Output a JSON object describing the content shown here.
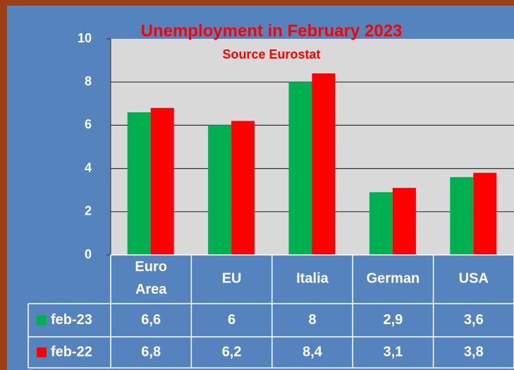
{
  "chart_data": {
    "type": "bar",
    "title": "Unemployment in February 2023",
    "subtitle": "Source Eurostat",
    "categories": [
      "Euro Area",
      "EU",
      "Italia",
      "German",
      "USA"
    ],
    "series": [
      {
        "name": "feb-23",
        "color": "#00b050",
        "values": [
          6.6,
          6,
          8,
          2.9,
          3.6
        ],
        "value_labels": [
          "6,6",
          "6",
          "8",
          "2,9",
          "3,6"
        ]
      },
      {
        "name": "feb-22",
        "color": "#ff0000",
        "values": [
          6.8,
          6.2,
          8.4,
          3.1,
          3.8
        ],
        "value_labels": [
          "6,8",
          "6,2",
          "8,4",
          "3,1",
          "3,8"
        ]
      }
    ],
    "ylim": [
      0,
      10
    ],
    "yticks": [
      0,
      2,
      4,
      6,
      8,
      10
    ],
    "grid": true
  }
}
